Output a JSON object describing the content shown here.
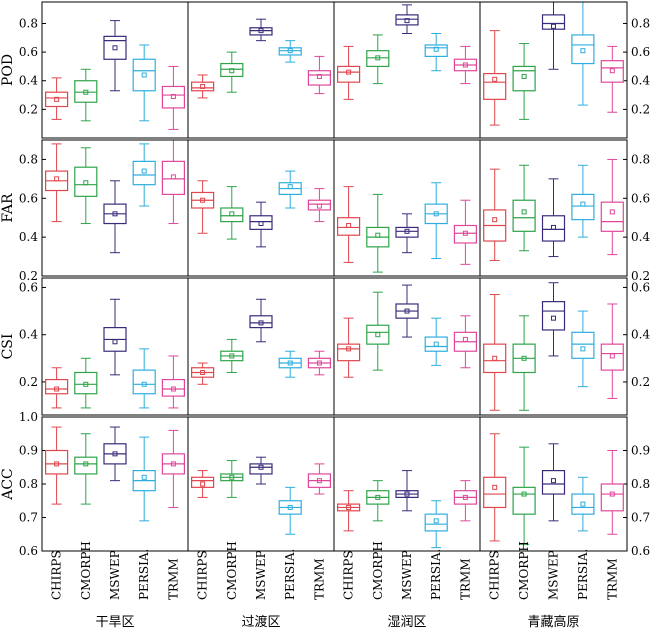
{
  "chart_data": {
    "type": "boxplot",
    "categories": [
      "CHIRPS",
      "CMORPH",
      "MSWEP",
      "PERSIA.",
      "TRMM"
    ],
    "regions": [
      "干旱区",
      "过渡区",
      "湿润区",
      "青藏高原"
    ],
    "colors": {
      "CHIRPS": "#e0464d",
      "CMORPH": "#2ea34a",
      "MSWEP": "#3b2a7a",
      "PERSIA.": "#2eaede",
      "TRMM": "#e0479a"
    },
    "metrics": [
      {
        "name": "POD",
        "ylim": [
          0.0,
          0.95
        ],
        "ticks_left": [
          "0.2",
          "0.4",
          "0.6",
          "0.8"
        ],
        "ticks_right": [
          "0.2",
          "0.4",
          "0.6",
          "0.8"
        ],
        "tick_values": [
          0.2,
          0.4,
          0.6,
          0.8
        ],
        "boxes": [
          [
            {
              "min": 0.13,
              "q1": 0.22,
              "median": 0.28,
              "q3": 0.32,
              "max": 0.42,
              "mean": 0.27
            },
            {
              "min": 0.12,
              "q1": 0.25,
              "median": 0.32,
              "q3": 0.4,
              "max": 0.48,
              "mean": 0.32
            },
            {
              "min": 0.33,
              "q1": 0.55,
              "median": 0.68,
              "q3": 0.71,
              "max": 0.82,
              "mean": 0.63
            },
            {
              "min": 0.12,
              "q1": 0.33,
              "median": 0.47,
              "q3": 0.55,
              "max": 0.65,
              "mean": 0.44
            },
            {
              "min": 0.06,
              "q1": 0.21,
              "median": 0.3,
              "q3": 0.36,
              "max": 0.5,
              "mean": 0.29
            }
          ],
          [
            {
              "min": 0.28,
              "q1": 0.33,
              "median": 0.35,
              "q3": 0.39,
              "max": 0.44,
              "mean": 0.36
            },
            {
              "min": 0.32,
              "q1": 0.43,
              "median": 0.48,
              "q3": 0.52,
              "max": 0.6,
              "mean": 0.47
            },
            {
              "min": 0.68,
              "q1": 0.72,
              "median": 0.75,
              "q3": 0.77,
              "max": 0.83,
              "mean": 0.75
            },
            {
              "min": 0.53,
              "q1": 0.58,
              "median": 0.61,
              "q3": 0.63,
              "max": 0.68,
              "mean": 0.61
            },
            {
              "min": 0.31,
              "q1": 0.37,
              "median": 0.44,
              "q3": 0.47,
              "max": 0.57,
              "mean": 0.43
            }
          ],
          [
            {
              "min": 0.27,
              "q1": 0.39,
              "median": 0.46,
              "q3": 0.5,
              "max": 0.64,
              "mean": 0.46
            },
            {
              "min": 0.38,
              "q1": 0.5,
              "median": 0.56,
              "q3": 0.61,
              "max": 0.72,
              "mean": 0.56
            },
            {
              "min": 0.73,
              "q1": 0.79,
              "median": 0.83,
              "q3": 0.86,
              "max": 0.93,
              "mean": 0.82
            },
            {
              "min": 0.47,
              "q1": 0.57,
              "median": 0.63,
              "q3": 0.65,
              "max": 0.73,
              "mean": 0.62
            },
            {
              "min": 0.38,
              "q1": 0.47,
              "median": 0.51,
              "q3": 0.55,
              "max": 0.64,
              "mean": 0.51
            }
          ],
          [
            {
              "min": 0.09,
              "q1": 0.27,
              "median": 0.39,
              "q3": 0.45,
              "max": 0.75,
              "mean": 0.41
            },
            {
              "min": 0.13,
              "q1": 0.33,
              "median": 0.47,
              "q3": 0.5,
              "max": 0.66,
              "mean": 0.43
            },
            {
              "min": 0.48,
              "q1": 0.76,
              "median": 0.8,
              "q3": 0.86,
              "max": 0.95,
              "mean": 0.78
            },
            {
              "min": 0.23,
              "q1": 0.52,
              "median": 0.65,
              "q3": 0.72,
              "max": 0.95,
              "mean": 0.61
            },
            {
              "min": 0.18,
              "q1": 0.39,
              "median": 0.49,
              "q3": 0.54,
              "max": 0.64,
              "mean": 0.47
            }
          ]
        ]
      },
      {
        "name": "FAR",
        "ylim": [
          0.2,
          0.9
        ],
        "ticks_left": [
          "0.2",
          "0.4",
          "0.6",
          "0.8"
        ],
        "ticks_right": [
          "0.2",
          "0.4",
          "0.6",
          "0.8"
        ],
        "tick_values": [
          0.2,
          0.4,
          0.6,
          0.8
        ],
        "boxes": [
          [
            {
              "min": 0.48,
              "q1": 0.64,
              "median": 0.69,
              "q3": 0.74,
              "max": 0.88,
              "mean": 0.7
            },
            {
              "min": 0.47,
              "q1": 0.61,
              "median": 0.67,
              "q3": 0.76,
              "max": 0.86,
              "mean": 0.68
            },
            {
              "min": 0.32,
              "q1": 0.47,
              "median": 0.52,
              "q3": 0.57,
              "max": 0.69,
              "mean": 0.52
            },
            {
              "min": 0.56,
              "q1": 0.67,
              "median": 0.72,
              "q3": 0.79,
              "max": 0.88,
              "mean": 0.74
            },
            {
              "min": 0.47,
              "q1": 0.62,
              "median": 0.7,
              "q3": 0.79,
              "max": 0.9,
              "mean": 0.71
            }
          ],
          [
            {
              "min": 0.42,
              "q1": 0.55,
              "median": 0.59,
              "q3": 0.63,
              "max": 0.69,
              "mean": 0.59
            },
            {
              "min": 0.39,
              "q1": 0.48,
              "median": 0.51,
              "q3": 0.55,
              "max": 0.66,
              "mean": 0.52
            },
            {
              "min": 0.35,
              "q1": 0.44,
              "median": 0.48,
              "q3": 0.51,
              "max": 0.58,
              "mean": 0.47
            },
            {
              "min": 0.55,
              "q1": 0.62,
              "median": 0.65,
              "q3": 0.68,
              "max": 0.74,
              "mean": 0.66
            },
            {
              "min": 0.48,
              "q1": 0.54,
              "median": 0.57,
              "q3": 0.59,
              "max": 0.65,
              "mean": 0.56
            }
          ],
          [
            {
              "min": 0.27,
              "q1": 0.41,
              "median": 0.45,
              "q3": 0.5,
              "max": 0.66,
              "mean": 0.46
            },
            {
              "min": 0.22,
              "q1": 0.35,
              "median": 0.4,
              "q3": 0.45,
              "max": 0.62,
              "mean": 0.41
            },
            {
              "min": 0.32,
              "q1": 0.4,
              "median": 0.43,
              "q3": 0.45,
              "max": 0.52,
              "mean": 0.43
            },
            {
              "min": 0.29,
              "q1": 0.47,
              "median": 0.52,
              "q3": 0.57,
              "max": 0.68,
              "mean": 0.52
            },
            {
              "min": 0.26,
              "q1": 0.37,
              "median": 0.42,
              "q3": 0.46,
              "max": 0.59,
              "mean": 0.42
            }
          ],
          [
            {
              "min": 0.28,
              "q1": 0.38,
              "median": 0.46,
              "q3": 0.54,
              "max": 0.75,
              "mean": 0.49
            },
            {
              "min": 0.33,
              "q1": 0.43,
              "median": 0.5,
              "q3": 0.59,
              "max": 0.77,
              "mean": 0.53
            },
            {
              "min": 0.3,
              "q1": 0.38,
              "median": 0.44,
              "q3": 0.51,
              "max": 0.7,
              "mean": 0.45
            },
            {
              "min": 0.4,
              "q1": 0.49,
              "median": 0.56,
              "q3": 0.62,
              "max": 0.77,
              "mean": 0.57
            },
            {
              "min": 0.31,
              "q1": 0.43,
              "median": 0.48,
              "q3": 0.58,
              "max": 0.8,
              "mean": 0.53
            }
          ]
        ]
      },
      {
        "name": "CSI",
        "ylim": [
          0.06,
          0.64
        ],
        "ticks_left": [
          "0.2",
          "0.4",
          "0.6"
        ],
        "ticks_right": [
          "0.2",
          "0.4",
          "0.6"
        ],
        "tick_values": [
          0.2,
          0.4,
          0.6
        ],
        "boxes": [
          [
            {
              "min": 0.09,
              "q1": 0.15,
              "median": 0.17,
              "q3": 0.21,
              "max": 0.26,
              "mean": 0.17
            },
            {
              "min": 0.09,
              "q1": 0.15,
              "median": 0.19,
              "q3": 0.24,
              "max": 0.3,
              "mean": 0.19
            },
            {
              "min": 0.23,
              "q1": 0.33,
              "median": 0.38,
              "q3": 0.43,
              "max": 0.55,
              "mean": 0.37
            },
            {
              "min": 0.09,
              "q1": 0.15,
              "median": 0.19,
              "q3": 0.25,
              "max": 0.34,
              "mean": 0.19
            },
            {
              "min": 0.09,
              "q1": 0.14,
              "median": 0.17,
              "q3": 0.21,
              "max": 0.31,
              "mean": 0.17
            }
          ],
          [
            {
              "min": 0.19,
              "q1": 0.22,
              "median": 0.24,
              "q3": 0.26,
              "max": 0.28,
              "mean": 0.24
            },
            {
              "min": 0.24,
              "q1": 0.29,
              "median": 0.31,
              "q3": 0.33,
              "max": 0.38,
              "mean": 0.31
            },
            {
              "min": 0.37,
              "q1": 0.43,
              "median": 0.45,
              "q3": 0.48,
              "max": 0.55,
              "mean": 0.45
            },
            {
              "min": 0.22,
              "q1": 0.26,
              "median": 0.28,
              "q3": 0.3,
              "max": 0.33,
              "mean": 0.28
            },
            {
              "min": 0.23,
              "q1": 0.26,
              "median": 0.28,
              "q3": 0.3,
              "max": 0.33,
              "mean": 0.28
            }
          ],
          [
            {
              "min": 0.22,
              "q1": 0.29,
              "median": 0.34,
              "q3": 0.36,
              "max": 0.47,
              "mean": 0.34
            },
            {
              "min": 0.25,
              "q1": 0.36,
              "median": 0.41,
              "q3": 0.44,
              "max": 0.58,
              "mean": 0.4
            },
            {
              "min": 0.39,
              "q1": 0.47,
              "median": 0.5,
              "q3": 0.53,
              "max": 0.61,
              "mean": 0.5
            },
            {
              "min": 0.27,
              "q1": 0.33,
              "median": 0.35,
              "q3": 0.39,
              "max": 0.47,
              "mean": 0.36
            },
            {
              "min": 0.26,
              "q1": 0.33,
              "median": 0.37,
              "q3": 0.41,
              "max": 0.48,
              "mean": 0.38
            }
          ],
          [
            {
              "min": 0.08,
              "q1": 0.24,
              "median": 0.29,
              "q3": 0.36,
              "max": 0.57,
              "mean": 0.3
            },
            {
              "min": 0.08,
              "q1": 0.24,
              "median": 0.3,
              "q3": 0.36,
              "max": 0.48,
              "mean": 0.3
            },
            {
              "min": 0.31,
              "q1": 0.42,
              "median": 0.5,
              "q3": 0.54,
              "max": 0.62,
              "mean": 0.47
            },
            {
              "min": 0.18,
              "q1": 0.3,
              "median": 0.36,
              "q3": 0.41,
              "max": 0.5,
              "mean": 0.34
            },
            {
              "min": 0.13,
              "q1": 0.25,
              "median": 0.32,
              "q3": 0.36,
              "max": 0.53,
              "mean": 0.31
            }
          ]
        ]
      },
      {
        "name": "ACC",
        "ylim": [
          0.6,
          1.0
        ],
        "ticks_left": [
          "0.6",
          "0.7",
          "0.8",
          "0.9",
          "1.0"
        ],
        "ticks_right": [
          "0.6",
          "0.7",
          "0.8",
          "0.9"
        ],
        "tick_values": [
          0.6,
          0.7,
          0.8,
          0.9,
          1.0
        ],
        "boxes": [
          [
            {
              "min": 0.74,
              "q1": 0.83,
              "median": 0.86,
              "q3": 0.9,
              "max": 0.97,
              "mean": 0.86
            },
            {
              "min": 0.74,
              "q1": 0.83,
              "median": 0.86,
              "q3": 0.88,
              "max": 0.95,
              "mean": 0.86
            },
            {
              "min": 0.81,
              "q1": 0.86,
              "median": 0.89,
              "q3": 0.92,
              "max": 0.97,
              "mean": 0.89
            },
            {
              "min": 0.69,
              "q1": 0.78,
              "median": 0.81,
              "q3": 0.84,
              "max": 0.94,
              "mean": 0.82
            },
            {
              "min": 0.73,
              "q1": 0.83,
              "median": 0.86,
              "q3": 0.89,
              "max": 0.96,
              "mean": 0.86
            }
          ],
          [
            {
              "min": 0.76,
              "q1": 0.79,
              "median": 0.81,
              "q3": 0.82,
              "max": 0.84,
              "mean": 0.8
            },
            {
              "min": 0.76,
              "q1": 0.81,
              "median": 0.82,
              "q3": 0.83,
              "max": 0.87,
              "mean": 0.82
            },
            {
              "min": 0.8,
              "q1": 0.83,
              "median": 0.85,
              "q3": 0.86,
              "max": 0.88,
              "mean": 0.85
            },
            {
              "min": 0.65,
              "q1": 0.71,
              "median": 0.73,
              "q3": 0.75,
              "max": 0.79,
              "mean": 0.73
            },
            {
              "min": 0.77,
              "q1": 0.79,
              "median": 0.81,
              "q3": 0.83,
              "max": 0.86,
              "mean": 0.81
            }
          ],
          [
            {
              "min": 0.66,
              "q1": 0.72,
              "median": 0.73,
              "q3": 0.74,
              "max": 0.78,
              "mean": 0.73
            },
            {
              "min": 0.69,
              "q1": 0.74,
              "median": 0.76,
              "q3": 0.78,
              "max": 0.81,
              "mean": 0.76
            },
            {
              "min": 0.72,
              "q1": 0.76,
              "median": 0.77,
              "q3": 0.78,
              "max": 0.84,
              "mean": 0.77
            },
            {
              "min": 0.61,
              "q1": 0.66,
              "median": 0.68,
              "q3": 0.71,
              "max": 0.75,
              "mean": 0.69
            },
            {
              "min": 0.69,
              "q1": 0.74,
              "median": 0.76,
              "q3": 0.78,
              "max": 0.81,
              "mean": 0.76
            }
          ],
          [
            {
              "min": 0.63,
              "q1": 0.73,
              "median": 0.77,
              "q3": 0.82,
              "max": 0.95,
              "mean": 0.79
            },
            {
              "min": 0.62,
              "q1": 0.71,
              "median": 0.77,
              "q3": 0.79,
              "max": 0.91,
              "mean": 0.77
            },
            {
              "min": 0.69,
              "q1": 0.77,
              "median": 0.8,
              "q3": 0.84,
              "max": 0.92,
              "mean": 0.81
            },
            {
              "min": 0.66,
              "q1": 0.71,
              "median": 0.73,
              "q3": 0.77,
              "max": 0.82,
              "mean": 0.74
            },
            {
              "min": 0.65,
              "q1": 0.72,
              "median": 0.77,
              "q3": 0.8,
              "max": 0.9,
              "mean": 0.77
            }
          ]
        ]
      }
    ]
  }
}
